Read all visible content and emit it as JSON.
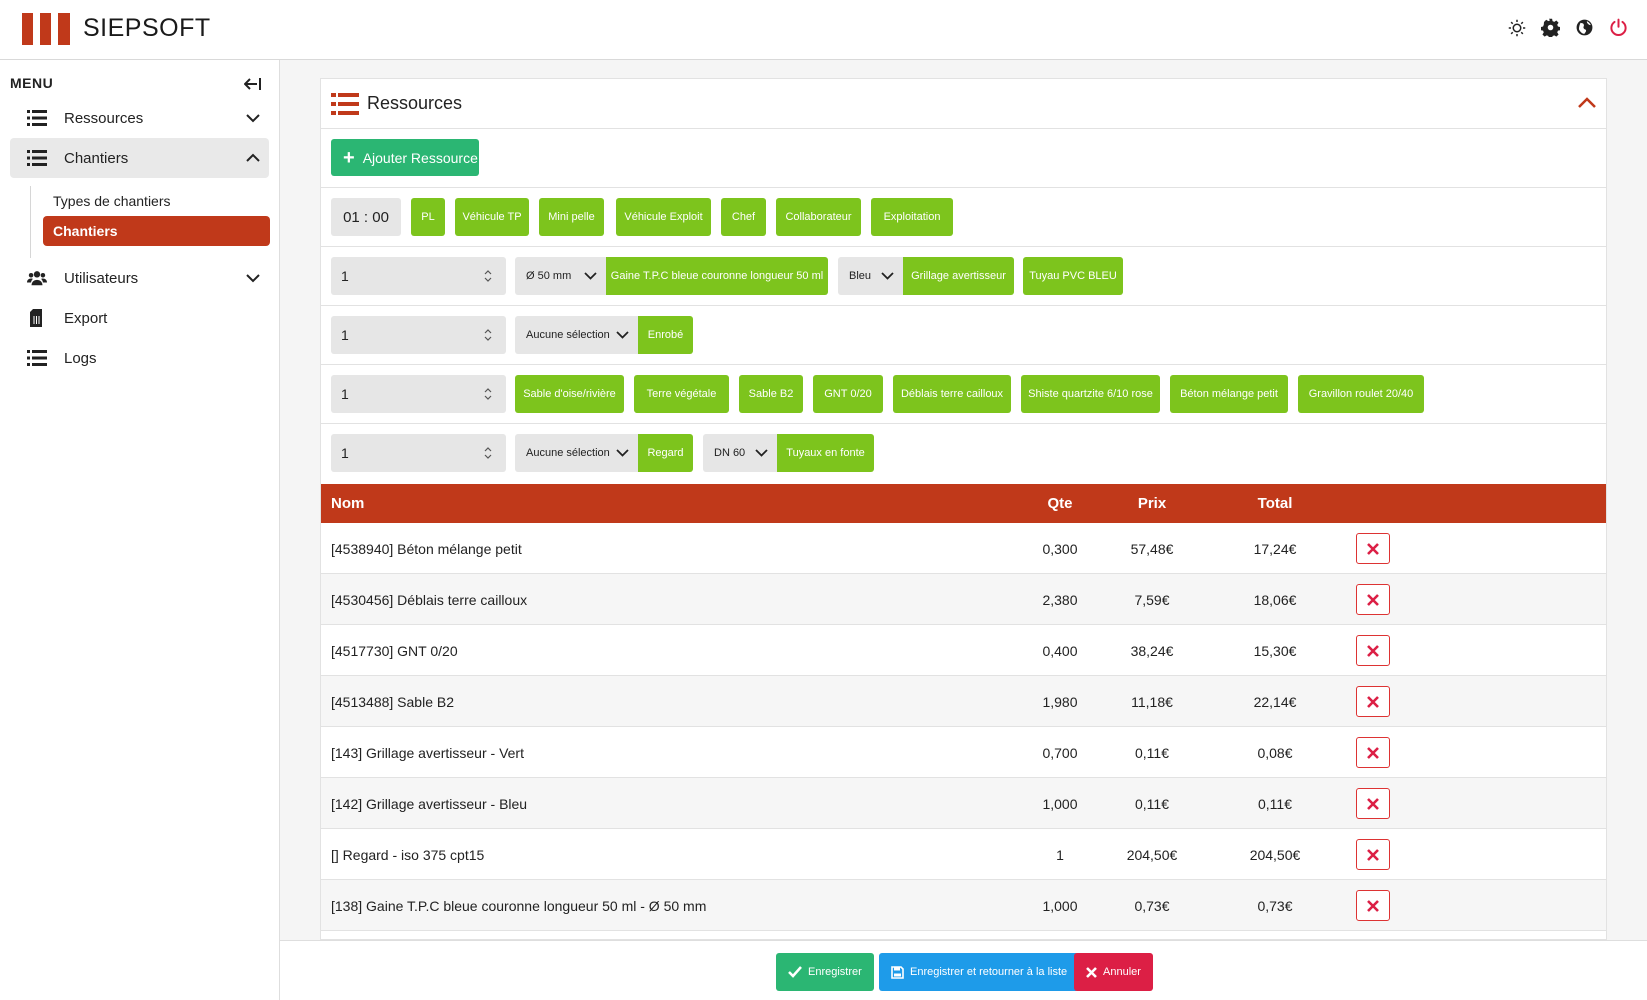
{
  "app": {
    "brand": "SIEPSOFT",
    "brand_color": "#c0391a"
  },
  "header": {
    "icons": [
      "sun-icon",
      "gear-icon",
      "globe-icon",
      "power-icon"
    ]
  },
  "sidebar": {
    "title": "MENU",
    "items": [
      {
        "label": "Ressources",
        "icon": "list-icon"
      },
      {
        "label": "Chantiers",
        "icon": "list-icon"
      },
      {
        "label": "Utilisateurs",
        "icon": "users-icon"
      },
      {
        "label": "Export",
        "icon": "file-icon"
      },
      {
        "label": "Logs",
        "icon": "list-icon"
      }
    ],
    "sub_items": [
      {
        "label": "Types de chantiers"
      },
      {
        "label": "Chantiers"
      }
    ]
  },
  "panel": {
    "title": "Ressources",
    "add_button": "Ajouter Ressource",
    "time": "01 : 00",
    "vehicle_buttons": [
      "PL",
      "Véhicule TP",
      "Mini pelle",
      "Véhicule Exploit",
      "Chef",
      "Collaborateur",
      "Exploitation"
    ],
    "row2": {
      "qty": "1",
      "diameter": "Ø 50 mm",
      "gaine": "Gaine T.P.C bleue couronne longueur 50 ml",
      "color": "Bleu",
      "grillage": "Grillage avertisseur",
      "tuyau": "Tuyau PVC BLEU"
    },
    "row3": {
      "qty": "1",
      "select": "Aucune sélection",
      "enrobe": "Enrobé"
    },
    "row4": {
      "qty": "1",
      "materials": [
        "Sable d'oise/rivière",
        "Terre végétale",
        "Sable B2",
        "GNT 0/20",
        "Déblais terre cailloux",
        "Shiste quartzite 6/10 rose",
        "Béton mélange petit",
        "Gravillon roulet 20/40"
      ]
    },
    "row5": {
      "qty": "1",
      "select": "Aucune sélection",
      "regard": "Regard",
      "dn": "DN 60",
      "fonte": "Tuyaux en fonte"
    }
  },
  "table": {
    "headers": {
      "nom": "Nom",
      "qte": "Qte",
      "prix": "Prix",
      "total": "Total"
    },
    "rows": [
      {
        "nom": "[4538940] Béton mélange petit",
        "qte": "0,300",
        "prix": "57,48€",
        "total": "17,24€"
      },
      {
        "nom": "[4530456] Déblais terre cailloux",
        "qte": "2,380",
        "prix": "7,59€",
        "total": "18,06€"
      },
      {
        "nom": "[4517730] GNT 0/20",
        "qte": "0,400",
        "prix": "38,24€",
        "total": "15,30€"
      },
      {
        "nom": "[4513488] Sable B2",
        "qte": "1,980",
        "prix": "11,18€",
        "total": "22,14€"
      },
      {
        "nom": "[143] Grillage avertisseur - Vert",
        "qte": "0,700",
        "prix": "0,11€",
        "total": "0,08€"
      },
      {
        "nom": "[142] Grillage avertisseur - Bleu",
        "qte": "1,000",
        "prix": "0,11€",
        "total": "0,11€"
      },
      {
        "nom": "[] Regard - iso 375 cpt15",
        "qte": "1",
        "prix": "204,50€",
        "total": "204,50€"
      },
      {
        "nom": "[138] Gaine T.P.C bleue couronne longueur 50 ml - Ø 50 mm",
        "qte": "1,000",
        "prix": "0,73€",
        "total": "0,73€"
      }
    ]
  },
  "footer": {
    "save": "Enregistrer",
    "save_return": "Enregistrer et retourner à la liste",
    "cancel": "Annuler"
  },
  "colors": {
    "green": "#7dc41d",
    "emerald": "#2bb673",
    "blue": "#1e9be9",
    "red": "#dc1f45"
  }
}
